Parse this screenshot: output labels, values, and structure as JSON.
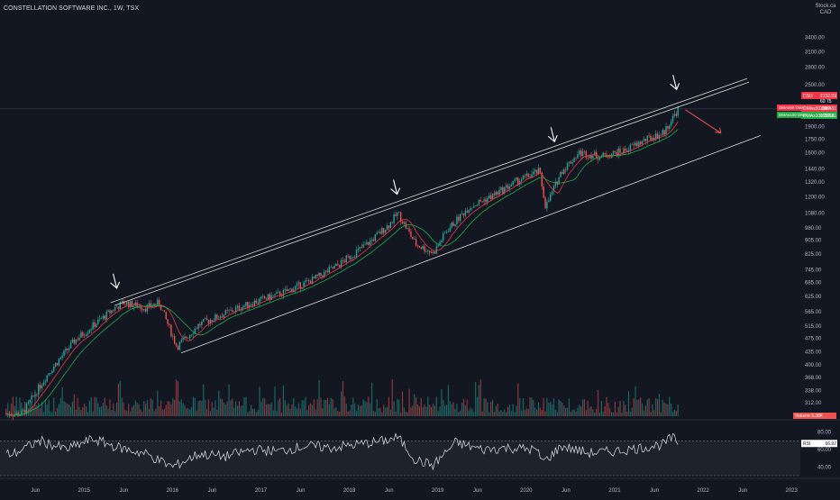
{
  "header": {
    "title": "CONSTELLATION SOFTWARE INC., 1W, TSX",
    "currency_top": "Stock.ca",
    "currency": "CAD"
  },
  "colors": {
    "background": "#131722",
    "up": "#26a69a",
    "down": "#ef5350",
    "ma_fast": "#f23645",
    "ma_slow": "#22ab45",
    "channel": "#d9d9d9",
    "arrow": "#ffffff",
    "rsi_line": "#e0e3eb"
  },
  "chart_data": [
    {
      "type": "candlestick",
      "title": "CONSTELLATION SOFTWARE INC., 1W, TSX",
      "scale": "log",
      "ylim": [
        284,
        4000
      ],
      "y_ticks": [
        "312.00",
        "338.00",
        "368.00",
        "400.00",
        "435.00",
        "475.00",
        "515.00",
        "565.00",
        "625.00",
        "685.00",
        "745.00",
        "825.00",
        "905.00",
        "980.00",
        "1080.00",
        "1200.00",
        "1320.00",
        "1440.00",
        "1600.00",
        "1750.00",
        "1900.00",
        "2100.00",
        "2300.00",
        "2500.00",
        "2800.00",
        "3100.00",
        "3400.00"
      ],
      "x_ticks": [
        "Jun",
        "2015",
        "Jun",
        "2016",
        "Jun",
        "2017",
        "Jun",
        "2018",
        "Jun",
        "2019",
        "Jun",
        "2020",
        "Jun",
        "2021",
        "Jun",
        "2022",
        "Jun",
        "2023"
      ],
      "anchor_prices": [
        {
          "date": 2014.3,
          "price": 290
        },
        {
          "date": 2014.6,
          "price": 380
        },
        {
          "date": 2014.9,
          "price": 470
        },
        {
          "date": 2015.35,
          "price": 580
        },
        {
          "date": 2015.45,
          "price": 600
        },
        {
          "date": 2015.7,
          "price": 580
        },
        {
          "date": 2015.85,
          "price": 600
        },
        {
          "date": 2016.05,
          "price": 450
        },
        {
          "date": 2016.3,
          "price": 520
        },
        {
          "date": 2016.6,
          "price": 560
        },
        {
          "date": 2016.9,
          "price": 600
        },
        {
          "date": 2017.25,
          "price": 640
        },
        {
          "date": 2017.6,
          "price": 700
        },
        {
          "date": 2017.85,
          "price": 760
        },
        {
          "date": 2018.2,
          "price": 880
        },
        {
          "date": 2018.45,
          "price": 1000
        },
        {
          "date": 2018.55,
          "price": 1080
        },
        {
          "date": 2018.75,
          "price": 880
        },
        {
          "date": 2018.95,
          "price": 830
        },
        {
          "date": 2019.1,
          "price": 960
        },
        {
          "date": 2019.35,
          "price": 1120
        },
        {
          "date": 2019.6,
          "price": 1200
        },
        {
          "date": 2019.9,
          "price": 1330
        },
        {
          "date": 2020.15,
          "price": 1420
        },
        {
          "date": 2020.22,
          "price": 1120
        },
        {
          "date": 2020.4,
          "price": 1420
        },
        {
          "date": 2020.6,
          "price": 1600
        },
        {
          "date": 2020.85,
          "price": 1560
        },
        {
          "date": 2021.1,
          "price": 1620
        },
        {
          "date": 2021.35,
          "price": 1740
        },
        {
          "date": 2021.55,
          "price": 1820
        },
        {
          "date": 2021.72,
          "price": 2132.59
        }
      ],
      "moving_averages": [
        {
          "name": "DMAs50 DMA",
          "value": 2087.31,
          "color": "#f23645"
        },
        {
          "name": "DMAs100 DMA",
          "value": 1952.31,
          "color": "#22ab45"
        }
      ],
      "price_labels": [
        {
          "name": "CSU",
          "value": "2132.59",
          "sub": "60 75"
        },
        {
          "name": "DMAs50 DMA",
          "value": "2087.31"
        },
        {
          "name": "DMAs100 DMA",
          "value": "1952.31"
        }
      ],
      "volume_label": "Volume",
      "volume_value": "5.38K",
      "channel": {
        "lower": [
          {
            "date": 2016.1,
            "price": 432
          },
          {
            "date": 2022.65,
            "price": 1790
          }
        ],
        "upper": [
          {
            "date": 2015.3,
            "price": 600
          },
          {
            "date": 2022.5,
            "price": 2600
          }
        ],
        "upper2": [
          {
            "date": 2015.35,
            "price": 590
          },
          {
            "date": 2022.52,
            "price": 2540
          }
        ]
      },
      "arrows": [
        {
          "date": 2015.35,
          "price": 660
        },
        {
          "date": 2018.52,
          "price": 1220
        },
        {
          "date": 2020.3,
          "price": 1720
        },
        {
          "date": 2021.68,
          "price": 2420
        }
      ],
      "projection_arrow": {
        "from": {
          "date": 2021.8,
          "price": 2120
        },
        "to": {
          "date": 2022.2,
          "price": 1820
        }
      }
    },
    {
      "type": "line",
      "name": "RSI",
      "ylim": [
        30,
        90
      ],
      "y_ticks": [
        "80.00",
        "60.00",
        "40.00"
      ],
      "bands": [
        70,
        50,
        30
      ],
      "current_label": "RSI",
      "current_value": "66.97",
      "anchor_values": [
        {
          "date": 2014.2,
          "value": 55
        },
        {
          "date": 2014.5,
          "value": 70
        },
        {
          "date": 2014.8,
          "value": 60
        },
        {
          "date": 2015.1,
          "value": 72
        },
        {
          "date": 2015.4,
          "value": 62
        },
        {
          "date": 2015.7,
          "value": 55
        },
        {
          "date": 2016.0,
          "value": 40
        },
        {
          "date": 2016.3,
          "value": 55
        },
        {
          "date": 2016.6,
          "value": 52
        },
        {
          "date": 2016.9,
          "value": 60
        },
        {
          "date": 2017.2,
          "value": 58
        },
        {
          "date": 2017.5,
          "value": 64
        },
        {
          "date": 2017.8,
          "value": 62
        },
        {
          "date": 2018.1,
          "value": 66
        },
        {
          "date": 2018.4,
          "value": 70
        },
        {
          "date": 2018.55,
          "value": 74
        },
        {
          "date": 2018.75,
          "value": 48
        },
        {
          "date": 2018.95,
          "value": 42
        },
        {
          "date": 2019.2,
          "value": 68
        },
        {
          "date": 2019.5,
          "value": 60
        },
        {
          "date": 2019.8,
          "value": 62
        },
        {
          "date": 2020.1,
          "value": 60
        },
        {
          "date": 2020.2,
          "value": 46
        },
        {
          "date": 2020.4,
          "value": 64
        },
        {
          "date": 2020.7,
          "value": 56
        },
        {
          "date": 2021.0,
          "value": 58
        },
        {
          "date": 2021.3,
          "value": 62
        },
        {
          "date": 2021.55,
          "value": 66
        },
        {
          "date": 2021.65,
          "value": 74
        },
        {
          "date": 2021.72,
          "value": 66.97
        }
      ]
    }
  ]
}
